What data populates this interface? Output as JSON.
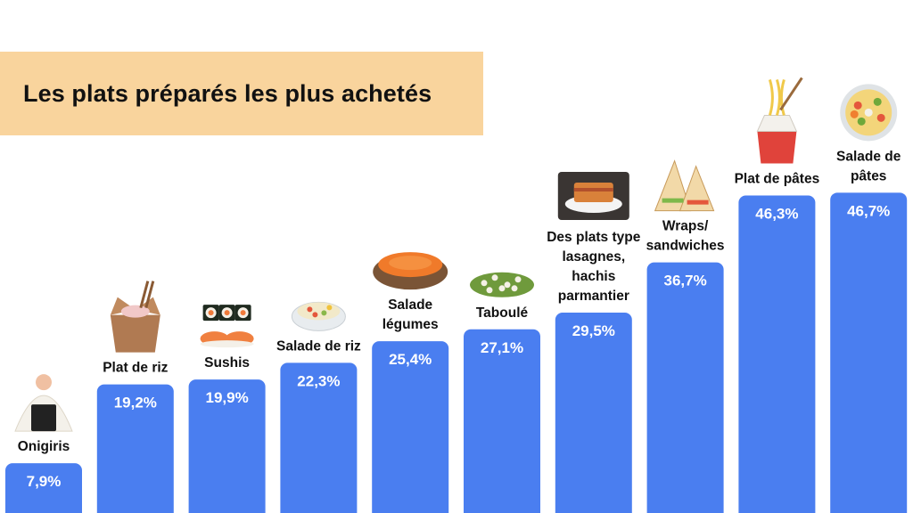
{
  "chart_data": {
    "type": "bar",
    "title": "Les plats préparés les plus achetés",
    "categories": [
      [
        "Onigiris"
      ],
      [
        "Plat de riz"
      ],
      [
        "Sushis"
      ],
      [
        "Salade de riz"
      ],
      [
        "Salade",
        "légumes"
      ],
      [
        "Taboulé"
      ],
      [
        "Des plats type",
        "lasagnes,",
        "hachis",
        "parmantier"
      ],
      [
        "Wraps/",
        "sandwiches"
      ],
      [
        "Plat de pâtes"
      ],
      [
        "Salade de",
        "pâtes"
      ]
    ],
    "values": [
      7.9,
      19.2,
      19.9,
      22.3,
      25.4,
      27.1,
      29.5,
      36.7,
      46.3,
      46.7
    ],
    "value_labels": [
      "7,9%",
      "19,2%",
      "19,9%",
      "22,3%",
      "25,4%",
      "27,1%",
      "29,5%",
      "36,7%",
      "46,3%",
      "46,7%"
    ],
    "icons": [
      "onigiri-icon",
      "rice-box-icon",
      "sushi-icon",
      "rice-salad-icon",
      "carrot-salad-icon",
      "tabbouleh-icon",
      "lasagna-icon",
      "sandwich-icon",
      "pasta-box-icon",
      "pasta-salad-icon"
    ],
    "bar_color": "#4a7ef0",
    "title_bg_color": "#f9d49d",
    "ylim": [
      0,
      50
    ],
    "grid": false,
    "legend": "none"
  }
}
